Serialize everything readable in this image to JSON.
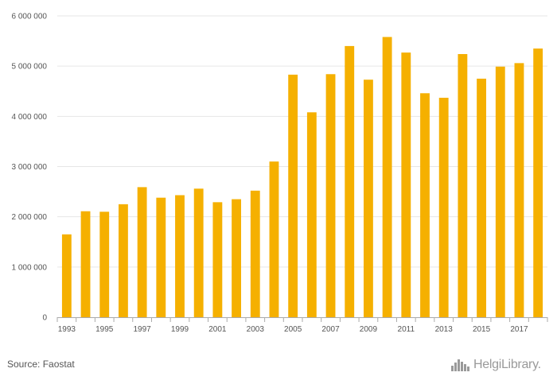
{
  "chart_data": {
    "type": "bar",
    "categories": [
      "1993",
      "1994",
      "1995",
      "1996",
      "1997",
      "1998",
      "1999",
      "2000",
      "2001",
      "2002",
      "2003",
      "2004",
      "2005",
      "2006",
      "2007",
      "2008",
      "2009",
      "2010",
      "2011",
      "2012",
      "2013",
      "2014",
      "2015",
      "2016",
      "2017",
      "2018"
    ],
    "x_tick_labels": [
      "1993",
      "1995",
      "1997",
      "1999",
      "2001",
      "2003",
      "2005",
      "2007",
      "2009",
      "2011",
      "2013",
      "2015",
      "2017"
    ],
    "values": [
      1650000,
      2110000,
      2100000,
      2250000,
      2590000,
      2380000,
      2430000,
      2560000,
      2290000,
      2350000,
      2520000,
      3100000,
      4830000,
      4080000,
      4840000,
      5400000,
      4730000,
      5580000,
      5270000,
      4460000,
      4370000,
      5240000,
      4750000,
      4990000,
      5060000,
      5350000
    ],
    "ylim": [
      0,
      6000000
    ],
    "y_ticks": [
      0,
      1000000,
      2000000,
      3000000,
      4000000,
      5000000,
      6000000
    ],
    "y_tick_labels": [
      "0",
      "1 000 000",
      "2 000 000",
      "3 000 000",
      "4 000 000",
      "5 000 000",
      "6 000 000"
    ],
    "title": "",
    "xlabel": "",
    "ylabel": "",
    "grid": true,
    "legend": "none",
    "bar_color": "#f5b000"
  },
  "footer": {
    "source_text": "Source: Faostat",
    "logo_text": "HelgiLibrary."
  },
  "colors": {
    "grid": "#e6e6e6",
    "axis": "#aaaaaa",
    "logo": "#9a9a9a"
  }
}
